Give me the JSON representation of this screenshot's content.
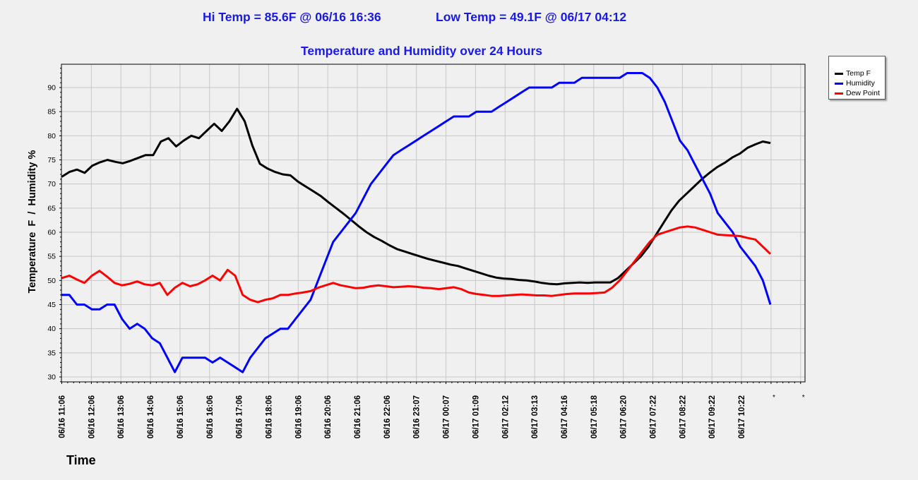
{
  "header": {
    "hi_temp": "Hi Temp = 85.6F @ 06/16 16:36",
    "low_temp": "Low Temp = 49.1F @ 06/17 04:12"
  },
  "chart_data": {
    "type": "line",
    "title": "Temperature and Humidity over 24 Hours",
    "xlabel": "Time",
    "ylabel": "Temperature  F  /  Humidity %",
    "ylim": [
      29,
      94
    ],
    "yticks": [
      30,
      35,
      40,
      45,
      50,
      55,
      60,
      65,
      70,
      75,
      80,
      85,
      90
    ],
    "xticks": [
      "06/16 11:06",
      "06/16 12:06",
      "06/16 13:06",
      "06/16 14:06",
      "06/16 15:06",
      "06/16 16:06",
      "06/16 17:06",
      "06/16 18:06",
      "06/16 19:06",
      "06/16 20:06",
      "06/16 21:06",
      "06/16 22:06",
      "06/16 23:07",
      "06/17 00:07",
      "06/17 01:09",
      "06/17 02:12",
      "06/17 03:13",
      "06/17 04:16",
      "06/17 05:18",
      "06/17 06:20",
      "06/17 07:22",
      "06/17 08:22",
      "06/17 09:22",
      "06/17 10:22",
      "*",
      "*"
    ],
    "grid": true,
    "legend_position": "top-right",
    "series": [
      {
        "name": "Temp F",
        "color": "#000000",
        "values": [
          71.5,
          72.5,
          73,
          72.3,
          73.8,
          74.5,
          75,
          74.6,
          74.3,
          74.8,
          75.4,
          76,
          76,
          78.8,
          79.5,
          77.8,
          79,
          80,
          79.5,
          81,
          82.5,
          81,
          83,
          85.6,
          83,
          78,
          74.2,
          73.2,
          72.5,
          72,
          71.8,
          70.5,
          69.5,
          68.5,
          67.5,
          66.2,
          65,
          63.8,
          62.5,
          61.2,
          60,
          59,
          58.2,
          57.3,
          56.5,
          56,
          55.5,
          55,
          54.5,
          54.1,
          53.7,
          53.3,
          53,
          52.5,
          52,
          51.5,
          51,
          50.6,
          50.4,
          50.3,
          50.1,
          50,
          49.8,
          49.5,
          49.3,
          49.2,
          49.4,
          49.5,
          49.6,
          49.5,
          49.6,
          49.6,
          49.6,
          50.5,
          52,
          53.5,
          55,
          57,
          59.5,
          62,
          64.5,
          66.5,
          68,
          69.5,
          71,
          72.3,
          73.5,
          74.4,
          75.5,
          76.3,
          77.5,
          78.2,
          78.8,
          78.5
        ]
      },
      {
        "name": "Humidity",
        "color": "#0000ff",
        "values": [
          47,
          47,
          45,
          45,
          44,
          44,
          45,
          45,
          42,
          40,
          41,
          40,
          38,
          37,
          34,
          31,
          34,
          34,
          34,
          34,
          33,
          34,
          33,
          32,
          31,
          34,
          36,
          38,
          39,
          40,
          40,
          42,
          44,
          46,
          50,
          54,
          58,
          60,
          62,
          64,
          67,
          70,
          72,
          74,
          76,
          77,
          78,
          79,
          80,
          81,
          82,
          83,
          84,
          84,
          84,
          85,
          85,
          85,
          86,
          87,
          88,
          89,
          90,
          90,
          90,
          90,
          91,
          91,
          91,
          92,
          92,
          92,
          92,
          92,
          92,
          93,
          93,
          93,
          92,
          90,
          87,
          83,
          79,
          77,
          74,
          71,
          68,
          64,
          62,
          60,
          57,
          55,
          53,
          50,
          45
        ]
      },
      {
        "name": "Dew Point",
        "color": "#ff0000",
        "values": [
          50.5,
          51,
          50.2,
          49.5,
          51,
          52,
          50.8,
          49.5,
          49,
          49.3,
          49.8,
          49.2,
          49,
          49.5,
          47,
          48.5,
          49.5,
          48.8,
          49.2,
          50,
          51,
          50,
          52.2,
          51,
          47,
          46,
          45.5,
          46,
          46.3,
          47,
          47,
          47.3,
          47.5,
          47.8,
          48.5,
          49,
          49.5,
          49,
          48.7,
          48.4,
          48.5,
          48.8,
          49,
          48.8,
          48.6,
          48.7,
          48.8,
          48.7,
          48.5,
          48.4,
          48.2,
          48.4,
          48.6,
          48.2,
          47.5,
          47.2,
          47,
          46.8,
          46.8,
          46.9,
          47,
          47.1,
          47,
          46.9,
          46.9,
          46.8,
          47,
          47.2,
          47.3,
          47.3,
          47.3,
          47.4,
          47.5,
          48.5,
          50,
          52,
          54,
          56,
          58,
          59.5,
          60,
          60.5,
          61,
          61.2,
          61,
          60.5,
          60,
          59.5,
          59.4,
          59.3,
          59.2,
          58.8,
          58.5,
          57,
          55.5
        ]
      }
    ]
  }
}
